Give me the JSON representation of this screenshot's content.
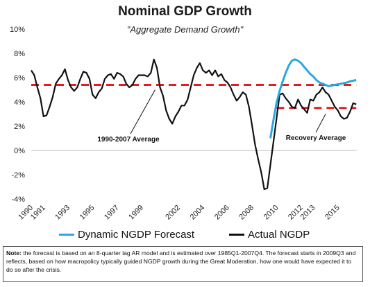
{
  "chart_data": {
    "type": "line",
    "title": "Nominal GDP Growth",
    "subtitle": "\"Aggregate Demand Growth\"",
    "xlabel": "",
    "ylabel": "",
    "ylim": [
      -4,
      10
    ],
    "xlim": [
      1990,
      2017
    ],
    "y_ticks": [
      -4,
      -2,
      0,
      2,
      4,
      6,
      8,
      10
    ],
    "y_tick_labels": [
      "-4%",
      "-2%",
      "0%",
      "2%",
      "4%",
      "6%",
      "8%",
      "10%"
    ],
    "x_ticks": [
      1990,
      1991,
      1993,
      1995,
      1997,
      1999,
      2002,
      2004,
      2006,
      2008,
      2010,
      2012,
      2013,
      2015
    ],
    "grid": false,
    "legend_position": "bottom",
    "series": [
      {
        "name": "Actual NGDP",
        "color": "#111111",
        "x": [
          1990.0,
          1990.25,
          1990.5,
          1990.75,
          1991.0,
          1991.25,
          1991.5,
          1991.75,
          1992.0,
          1992.25,
          1992.5,
          1992.75,
          1993.0,
          1993.25,
          1993.5,
          1993.75,
          1994.0,
          1994.25,
          1994.5,
          1994.75,
          1995.0,
          1995.25,
          1995.5,
          1995.75,
          1996.0,
          1996.25,
          1996.5,
          1996.75,
          1997.0,
          1997.25,
          1997.5,
          1997.75,
          1998.0,
          1998.25,
          1998.5,
          1998.75,
          1999.0,
          1999.25,
          1999.5,
          1999.75,
          2000.0,
          2000.25,
          2000.5,
          2000.75,
          2001.0,
          2001.25,
          2001.5,
          2001.75,
          2002.0,
          2002.25,
          2002.5,
          2002.75,
          2003.0,
          2003.25,
          2003.5,
          2003.75,
          2004.0,
          2004.25,
          2004.5,
          2004.75,
          2005.0,
          2005.25,
          2005.5,
          2005.75,
          2006.0,
          2006.25,
          2006.5,
          2006.75,
          2007.0,
          2007.25,
          2007.5,
          2007.75,
          2008.0,
          2008.25,
          2008.5,
          2008.75,
          2009.0,
          2009.25,
          2009.5,
          2009.75,
          2010.0,
          2010.25,
          2010.5,
          2010.75,
          2011.0,
          2011.25,
          2011.5,
          2011.75,
          2012.0,
          2012.25,
          2012.5,
          2012.75,
          2013.0,
          2013.25,
          2013.5,
          2013.75,
          2014.0,
          2014.25,
          2014.5,
          2014.75,
          2015.0,
          2015.25,
          2015.5,
          2015.75,
          2016.0,
          2016.25,
          2016.5
        ],
        "values": [
          6.6,
          6.2,
          5.2,
          4.3,
          2.8,
          2.9,
          3.6,
          4.4,
          5.5,
          5.9,
          6.2,
          6.7,
          5.8,
          5.2,
          4.9,
          5.2,
          5.9,
          6.5,
          6.4,
          5.9,
          4.6,
          4.3,
          4.8,
          5.1,
          5.9,
          6.2,
          6.3,
          5.9,
          6.4,
          6.3,
          6.1,
          5.5,
          5.2,
          5.4,
          5.9,
          6.2,
          6.2,
          6.2,
          6.1,
          6.4,
          7.5,
          6.8,
          5.2,
          4.5,
          3.3,
          2.6,
          2.2,
          2.8,
          3.2,
          3.7,
          3.7,
          4.2,
          5.2,
          6.2,
          6.8,
          7.2,
          6.6,
          6.4,
          6.6,
          6.2,
          6.6,
          6.1,
          6.3,
          5.8,
          5.6,
          5.2,
          4.6,
          4.1,
          4.4,
          4.8,
          4.6,
          3.6,
          2.1,
          0.5,
          -0.7,
          -1.8,
          -3.2,
          -3.1,
          -1.2,
          0.7,
          2.6,
          4.6,
          4.7,
          4.3,
          4.0,
          3.6,
          3.5,
          4.2,
          3.7,
          3.4,
          3.1,
          4.2,
          4.1,
          4.6,
          4.8,
          5.2,
          4.8,
          4.6,
          4.1,
          3.6,
          3.3,
          2.8,
          2.6,
          2.7,
          3.2,
          3.9,
          3.8
        ]
      },
      {
        "name": "Dynamic NGDP Forecast",
        "color": "#2aa7e0",
        "x": [
          2009.5,
          2009.75,
          2010.0,
          2010.25,
          2010.5,
          2010.75,
          2011.0,
          2011.25,
          2011.5,
          2011.75,
          2012.0,
          2012.25,
          2012.5,
          2012.75,
          2013.0,
          2013.25,
          2013.5,
          2013.75,
          2014.0,
          2014.25,
          2014.5,
          2014.75,
          2015.0,
          2015.25,
          2015.5,
          2015.75,
          2016.0,
          2016.25,
          2016.5
        ],
        "values": [
          1.0,
          2.5,
          3.9,
          4.9,
          5.7,
          6.4,
          7.0,
          7.4,
          7.5,
          7.4,
          7.2,
          6.9,
          6.6,
          6.3,
          6.1,
          5.8,
          5.6,
          5.5,
          5.4,
          5.3,
          5.35,
          5.4,
          5.45,
          5.5,
          5.55,
          5.6,
          5.7,
          5.75,
          5.8
        ]
      }
    ],
    "reference_lines": [
      {
        "label": "1990-2007 Average",
        "value": 5.4,
        "x_range": [
          1990,
          2016.5
        ],
        "color": "#e02020",
        "dashed": true
      },
      {
        "label": "Recovery Average",
        "value": 3.5,
        "x_range": [
          2010,
          2016.5
        ],
        "color": "#e02020",
        "dashed": true
      }
    ]
  },
  "note": {
    "label": "Note:",
    "text": " the forecast is based on an 8-quarter lag AR model and is estimated over 1985Q1-2007Q4. The forecast starts in 2009Q3 and reflects, based on how macropolicy typically guided NGDP growth during the Great Moderation, how one would have expected it to do so after the crisis."
  }
}
